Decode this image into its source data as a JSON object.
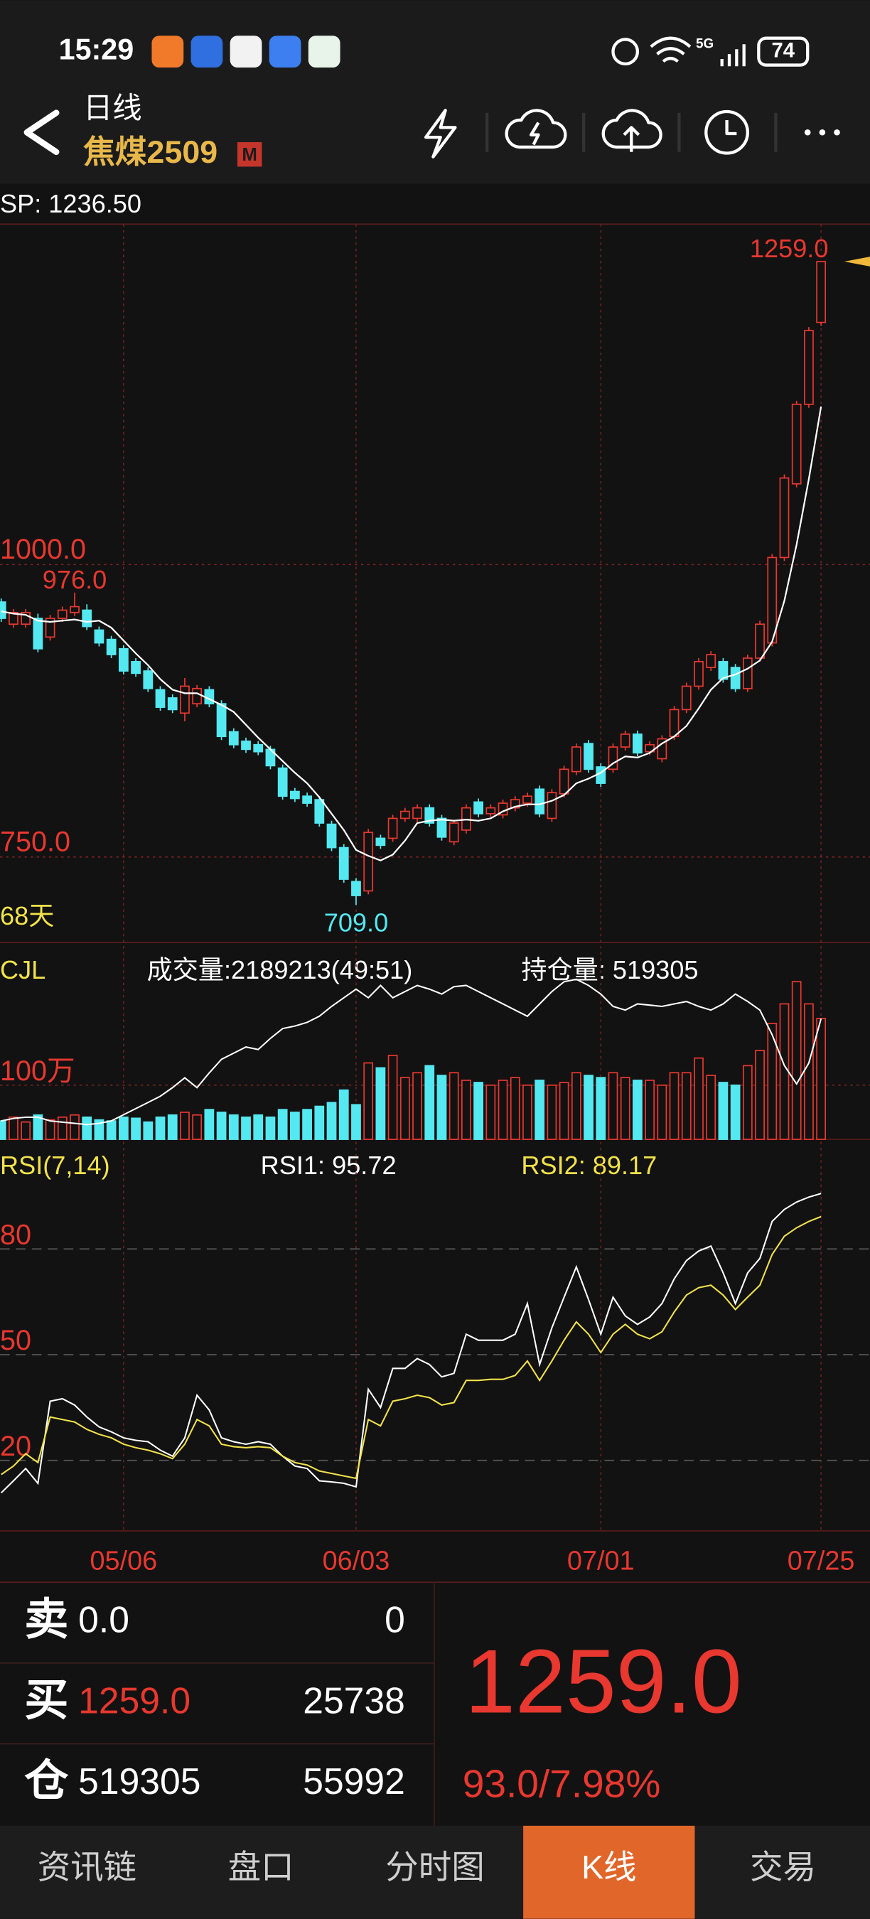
{
  "status_bar": {
    "time": "15:29",
    "network": "5G",
    "battery": "74"
  },
  "header": {
    "period": "日线",
    "symbol": "焦煤2509",
    "badge": "M"
  },
  "sp": "SP: 1236.50",
  "chart_data": [
    {
      "type": "candlestick",
      "days_label": "68天",
      "categories": [
        null,
        null,
        null,
        null,
        null,
        null,
        null,
        null,
        null,
        null,
        "05/06",
        null,
        null,
        null,
        null,
        null,
        null,
        null,
        null,
        null,
        null,
        null,
        null,
        null,
        null,
        null,
        null,
        null,
        null,
        "06/03",
        null,
        null,
        null,
        null,
        null,
        null,
        null,
        null,
        null,
        null,
        null,
        null,
        null,
        null,
        null,
        null,
        null,
        null,
        null,
        "07/01",
        null,
        null,
        null,
        null,
        null,
        null,
        null,
        null,
        null,
        null,
        null,
        null,
        null,
        null,
        null,
        null,
        null,
        "07/25"
      ],
      "open": [
        968,
        949,
        949,
        954,
        938,
        954,
        959,
        961,
        944,
        936,
        928,
        917,
        909,
        893,
        886,
        873,
        881,
        893,
        881,
        857,
        849,
        846,
        842,
        826,
        806,
        802,
        799,
        778,
        758,
        729,
        721,
        766,
        766,
        783,
        783,
        792,
        783,
        763,
        773,
        797,
        787,
        786,
        792,
        796,
        808,
        783,
        804,
        823,
        847,
        827,
        825,
        844,
        855,
        840,
        834,
        853,
        876,
        896,
        912,
        917,
        912,
        894,
        920,
        933,
        1006,
        1069,
        1137,
        1207
      ],
      "high": [
        971,
        962,
        962,
        958,
        957,
        964,
        976,
        966,
        947,
        939,
        931,
        920,
        912,
        896,
        889,
        903,
        897,
        896,
        884,
        860,
        852,
        849,
        845,
        829,
        809,
        805,
        802,
        781,
        761,
        732,
        774,
        769,
        786,
        792,
        795,
        795,
        786,
        782,
        795,
        800,
        795,
        799,
        802,
        805,
        811,
        808,
        828,
        847,
        850,
        830,
        847,
        858,
        858,
        849,
        854,
        879,
        899,
        920,
        926,
        920,
        915,
        923,
        952,
        1009,
        1077,
        1140,
        1203,
        1259
      ],
      "low": [
        951,
        946,
        946,
        925,
        935,
        951,
        956,
        944,
        930,
        920,
        906,
        904,
        891,
        875,
        873,
        866,
        878,
        878,
        850,
        843,
        839,
        837,
        825,
        799,
        797,
        793,
        776,
        755,
        728,
        709,
        718,
        757,
        763,
        780,
        780,
        776,
        764,
        760,
        770,
        784,
        784,
        783,
        789,
        793,
        784,
        780,
        801,
        820,
        822,
        810,
        822,
        841,
        836,
        837,
        831,
        850,
        873,
        893,
        909,
        899,
        891,
        891,
        917,
        930,
        1003,
        1066,
        1134,
        1204
      ],
      "close": [
        954,
        959,
        959,
        928,
        954,
        961,
        964,
        947,
        933,
        923,
        909,
        907,
        894,
        878,
        876,
        896,
        894,
        881,
        853,
        846,
        842,
        840,
        828,
        802,
        800,
        796,
        779,
        758,
        731,
        717,
        771,
        760,
        783,
        789,
        792,
        779,
        767,
        779,
        792,
        787,
        792,
        796,
        799,
        802,
        787,
        805,
        825,
        844,
        825,
        813,
        844,
        855,
        839,
        846,
        851,
        876,
        896,
        917,
        923,
        902,
        894,
        920,
        949,
        1006,
        1074,
        1137,
        1200,
        1259
      ],
      "up_color": "#e8382f",
      "down_color": "#54e8f0",
      "ma": {
        "color": "#ffffff",
        "values": [
          960,
          958,
          957,
          952,
          951,
          952,
          953,
          951,
          952,
          946,
          935,
          924,
          914,
          902,
          893,
          890,
          890,
          885,
          880,
          874,
          863,
          852,
          842,
          832,
          822,
          813,
          801,
          787,
          773,
          756,
          751,
          747,
          752,
          764,
          779,
          781,
          782,
          781,
          782,
          781,
          783,
          789,
          793,
          795,
          795,
          798,
          803,
          813,
          817,
          822,
          830,
          836,
          835,
          839,
          847,
          853,
          862,
          877,
          893,
          903,
          906,
          911,
          918,
          934,
          969,
          1017,
          1073,
          1135
        ]
      },
      "annotations": [
        {
          "value": 1259,
          "label": "1259.0",
          "color": "#e8382f"
        },
        {
          "value": 976,
          "label": "976.0",
          "color": "#e8382f"
        },
        {
          "value": 709,
          "label": "709.0",
          "color": "#54e8f0"
        }
      ],
      "ylim": [
        677,
        1291
      ],
      "yticks": [
        {
          "value": 1000,
          "label": "1000.0"
        },
        {
          "value": 750,
          "label": "750.0"
        }
      ],
      "grid": true
    },
    {
      "type": "bar",
      "title": "CJL",
      "volume_label": "成交量:2189213(49:51)",
      "values": [
        34,
        41,
        32,
        45,
        36,
        41,
        45,
        41,
        36,
        34,
        41,
        39,
        32,
        41,
        45,
        50,
        45,
        55,
        50,
        45,
        41,
        45,
        41,
        55,
        50,
        55,
        61,
        68,
        91,
        64,
        141,
        132,
        155,
        114,
        123,
        136,
        118,
        123,
        109,
        105,
        100,
        109,
        114,
        100,
        109,
        100,
        105,
        123,
        118,
        114,
        123,
        114,
        109,
        109,
        100,
        123,
        123,
        150,
        118,
        105,
        100,
        136,
        164,
        214,
        250,
        291,
        250,
        223
      ],
      "ylim": [
        0,
        359
      ],
      "yticks": [
        {
          "value": 100,
          "label": "100万"
        }
      ],
      "open_interest": {
        "label": "持仓量: 519305",
        "color": "#ffffff",
        "ylim": [
          350000,
          623000
        ],
        "values": [
          375900,
          379400,
          381100,
          381100,
          375900,
          374200,
          372500,
          370700,
          372500,
          375900,
          384600,
          393200,
          401800,
          410500,
          422600,
          436400,
          422600,
          443300,
          462300,
          471000,
          479600,
          476100,
          491700,
          505500,
          509000,
          514200,
          522800,
          536600,
          548700,
          560800,
          548700,
          566000,
          548700,
          557400,
          566000,
          560800,
          553900,
          564300,
          566000,
          557400,
          548700,
          540100,
          531400,
          522800,
          540100,
          557400,
          571200,
          574600,
          566000,
          553900,
          536600,
          531400,
          540100,
          538400,
          536600,
          540100,
          543500,
          536600,
          531400,
          540100,
          553900,
          543500,
          531400,
          496900,
          453700,
          427800,
          457100,
          519305
        ]
      }
    },
    {
      "type": "line",
      "title": "RSI(7,14)",
      "series": [
        {
          "name": "RSI1: 95.72",
          "color": "#ffffff",
          "values": [
            10.8,
            14.2,
            17.7,
            13.5,
            36.8,
            37.5,
            35.7,
            32.3,
            29.5,
            28.1,
            26.4,
            25.7,
            25.3,
            22.9,
            21.2,
            26.4,
            38.5,
            34.3,
            26.4,
            25.3,
            24.6,
            25.3,
            24.6,
            21.2,
            18.4,
            17.7,
            14.2,
            13.9,
            13.5,
            12.5,
            40.2,
            35.0,
            46.1,
            46.1,
            48.9,
            47.2,
            43.7,
            44.7,
            55.8,
            54.1,
            54.1,
            54.1,
            55.8,
            64.5,
            47.2,
            57.6,
            66.3,
            74.9,
            65.6,
            55.8,
            66.3,
            61.0,
            58.6,
            60.7,
            64.5,
            71.5,
            76.7,
            79.4,
            80.8,
            73.2,
            64.5,
            73.2,
            77.3,
            87.8,
            91.2,
            93.3,
            94.7,
            95.72
          ]
        },
        {
          "name": "RSI2: 89.17",
          "color": "#f2e24a",
          "values": [
            16.0,
            18.4,
            21.9,
            19.4,
            32.3,
            31.6,
            30.9,
            28.8,
            27.4,
            26.4,
            24.6,
            23.6,
            22.9,
            21.9,
            20.5,
            24.6,
            31.6,
            29.8,
            24.6,
            23.9,
            23.6,
            23.9,
            23.6,
            21.2,
            19.4,
            18.7,
            17.0,
            16.3,
            15.6,
            14.9,
            31.6,
            29.8,
            36.8,
            37.5,
            38.5,
            37.8,
            35.7,
            36.4,
            42.7,
            42.7,
            43.0,
            43.0,
            44.1,
            48.2,
            42.7,
            48.2,
            54.1,
            59.3,
            55.8,
            50.6,
            55.8,
            58.6,
            55.8,
            54.5,
            56.5,
            62.1,
            66.9,
            69.0,
            69.7,
            66.9,
            62.8,
            66.3,
            69.7,
            78.4,
            83.6,
            86.0,
            87.8,
            89.17
          ]
        }
      ],
      "ylim": [
        0,
        109
      ],
      "yticks": [
        80,
        50,
        20
      ],
      "grid": true
    }
  ],
  "quote": {
    "rows": [
      {
        "label": "卖",
        "price": "0.0",
        "price_color": "#ffffff",
        "volume": "0"
      },
      {
        "label": "买",
        "price": "1259.0",
        "price_color": "#e8382f",
        "volume": "25738"
      },
      {
        "label": "仓",
        "price": "519305",
        "price_color": "#ffffff",
        "volume": "55992"
      }
    ],
    "last": "1259.0",
    "change": "93.0/7.98%"
  },
  "tabs": {
    "items": [
      "资讯链",
      "盘口",
      "分时图",
      "K线",
      "交易"
    ],
    "active": "K线"
  }
}
